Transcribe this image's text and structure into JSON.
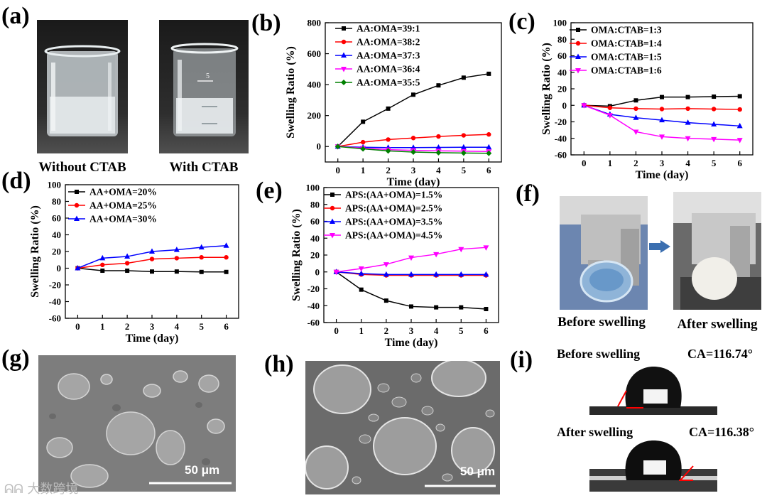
{
  "panel_labels": {
    "a": "(a)",
    "b": "(b)",
    "c": "(c)",
    "d": "(d)",
    "e": "(e)",
    "f": "(f)",
    "g": "(g)",
    "h": "(h)",
    "i": "(i)"
  },
  "panel_a": {
    "left_caption": "Without CTAB",
    "right_caption": "With CTAB",
    "beaker_mark_5": "5"
  },
  "panel_f": {
    "before_caption": "Before swelling",
    "after_caption": "After swelling"
  },
  "panel_g": {
    "scale": "50 μm"
  },
  "panel_h": {
    "scale": "50 μm"
  },
  "panel_i": {
    "before_label": "Before swelling",
    "before_ca": "CA=116.74°",
    "after_label": "After swelling",
    "after_ca": "CA=116.38°"
  },
  "watermark": "大数跨境",
  "colors": {
    "black": "#000000",
    "red": "#ff0000",
    "blue": "#0000ff",
    "magenta": "#ff00ff",
    "green": "#008000"
  },
  "chart_data": [
    {
      "id": "b",
      "type": "line",
      "xlabel": "Time (day)",
      "ylabel": "Swelling Ratio (%)",
      "x": [
        0,
        1,
        2,
        3,
        4,
        5,
        6
      ],
      "ylim": [
        -100,
        800
      ],
      "yticks": [
        0,
        200,
        400,
        600,
        800
      ],
      "series": [
        {
          "name": "AA:OMA=39:1",
          "color": "#000000",
          "marker": "square",
          "values": [
            0,
            160,
            245,
            335,
            395,
            445,
            470
          ]
        },
        {
          "name": "AA:OMA=38:2",
          "color": "#ff0000",
          "marker": "circle",
          "values": [
            0,
            28,
            45,
            55,
            65,
            72,
            78
          ]
        },
        {
          "name": "AA:OMA=37:3",
          "color": "#0000ff",
          "marker": "triangle",
          "values": [
            0,
            -5,
            -7,
            -7,
            -6,
            -5,
            -5
          ]
        },
        {
          "name": "AA:OMA=36:4",
          "color": "#ff00ff",
          "marker": "tri-down",
          "values": [
            0,
            -10,
            -20,
            -25,
            -28,
            -30,
            -32
          ]
        },
        {
          "name": "AA:OMA=35:5",
          "color": "#008000",
          "marker": "diamond",
          "values": [
            0,
            -15,
            -28,
            -36,
            -40,
            -42,
            -44
          ]
        }
      ]
    },
    {
      "id": "c",
      "type": "line",
      "xlabel": "Time (day)",
      "ylabel": "Swelling Ratio (%)",
      "x": [
        0,
        1,
        2,
        3,
        4,
        5,
        6
      ],
      "ylim": [
        -60,
        100
      ],
      "yticks": [
        -60,
        -40,
        -20,
        0,
        20,
        40,
        60,
        80,
        100
      ],
      "series": [
        {
          "name": "OMA:CTAB=1:3",
          "color": "#000000",
          "marker": "square",
          "values": [
            0,
            -1,
            6,
            10,
            10,
            10.5,
            11
          ]
        },
        {
          "name": "OMA:CTAB=1:4",
          "color": "#ff0000",
          "marker": "circle",
          "values": [
            0,
            -3,
            -4,
            -4.5,
            -4,
            -4.5,
            -5
          ]
        },
        {
          "name": "OMA:CTAB=1:5",
          "color": "#0000ff",
          "marker": "triangle",
          "values": [
            0,
            -11,
            -15,
            -18,
            -21,
            -23,
            -25
          ]
        },
        {
          "name": "OMA:CTAB=1:6",
          "color": "#ff00ff",
          "marker": "tri-down",
          "values": [
            0,
            -12,
            -32,
            -38,
            -40,
            -41,
            -42
          ]
        }
      ]
    },
    {
      "id": "d",
      "type": "line",
      "xlabel": "Time (day)",
      "ylabel": "Swelling Ratio (%)",
      "x": [
        0,
        1,
        2,
        3,
        4,
        5,
        6
      ],
      "ylim": [
        -60,
        100
      ],
      "yticks": [
        -60,
        -40,
        -20,
        0,
        20,
        40,
        60,
        80,
        100
      ],
      "series": [
        {
          "name": "AA+OMA=20%",
          "color": "#000000",
          "marker": "square",
          "values": [
            0,
            -3,
            -3,
            -4,
            -4,
            -4.5,
            -4.5
          ]
        },
        {
          "name": "AA+OMA=25%",
          "color": "#ff0000",
          "marker": "circle",
          "values": [
            0,
            4,
            6,
            11,
            12,
            13,
            13
          ]
        },
        {
          "name": "AA+OMA=30%",
          "color": "#0000ff",
          "marker": "triangle",
          "values": [
            0,
            12,
            14,
            20,
            22,
            25,
            27
          ]
        }
      ]
    },
    {
      "id": "e",
      "type": "line",
      "xlabel": "Time (day)",
      "ylabel": "Swelling Ratio (%)",
      "x": [
        0,
        1,
        2,
        3,
        4,
        5,
        6
      ],
      "ylim": [
        -60,
        100
      ],
      "yticks": [
        -60,
        -40,
        -20,
        0,
        20,
        40,
        60,
        80,
        100
      ],
      "series": [
        {
          "name": "APS:(AA+OMA)=1.5%",
          "color": "#000000",
          "marker": "square",
          "values": [
            0,
            -21,
            -34,
            -41,
            -42,
            -42,
            -44
          ]
        },
        {
          "name": "APS:(AA+OMA)=2.5%",
          "color": "#ff0000",
          "marker": "circle",
          "values": [
            0,
            -3,
            -4,
            -4,
            -4,
            -4,
            -4
          ]
        },
        {
          "name": "APS:(AA+OMA)=3.5%",
          "color": "#0000ff",
          "marker": "triangle",
          "values": [
            0,
            -2,
            -3,
            -3,
            -3,
            -3,
            -3
          ]
        },
        {
          "name": "APS:(AA+OMA)=4.5%",
          "color": "#ff00ff",
          "marker": "tri-down",
          "values": [
            0,
            4,
            9,
            17,
            21,
            27,
            29
          ]
        }
      ]
    }
  ]
}
